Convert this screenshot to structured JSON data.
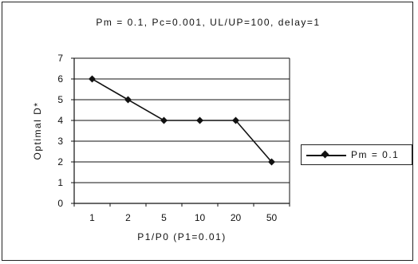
{
  "chart_data": {
    "type": "line",
    "title": "Pm = 0.1, Pc=0.001, UL/UP=100, delay=1",
    "xlabel": "P1/P0 (P1=0.01)",
    "ylabel": "Optimal D*",
    "categories": [
      "1",
      "2",
      "5",
      "10",
      "20",
      "50"
    ],
    "series": [
      {
        "name": "Pm = 0.1",
        "values": [
          6,
          5,
          4,
          4,
          4,
          2
        ],
        "color": "#111111",
        "marker": "diamond"
      }
    ],
    "ylim": [
      0,
      7
    ],
    "yticks": [
      "0",
      "1",
      "2",
      "3",
      "4",
      "5",
      "6",
      "7"
    ],
    "grid": true,
    "legend_position": "right"
  }
}
